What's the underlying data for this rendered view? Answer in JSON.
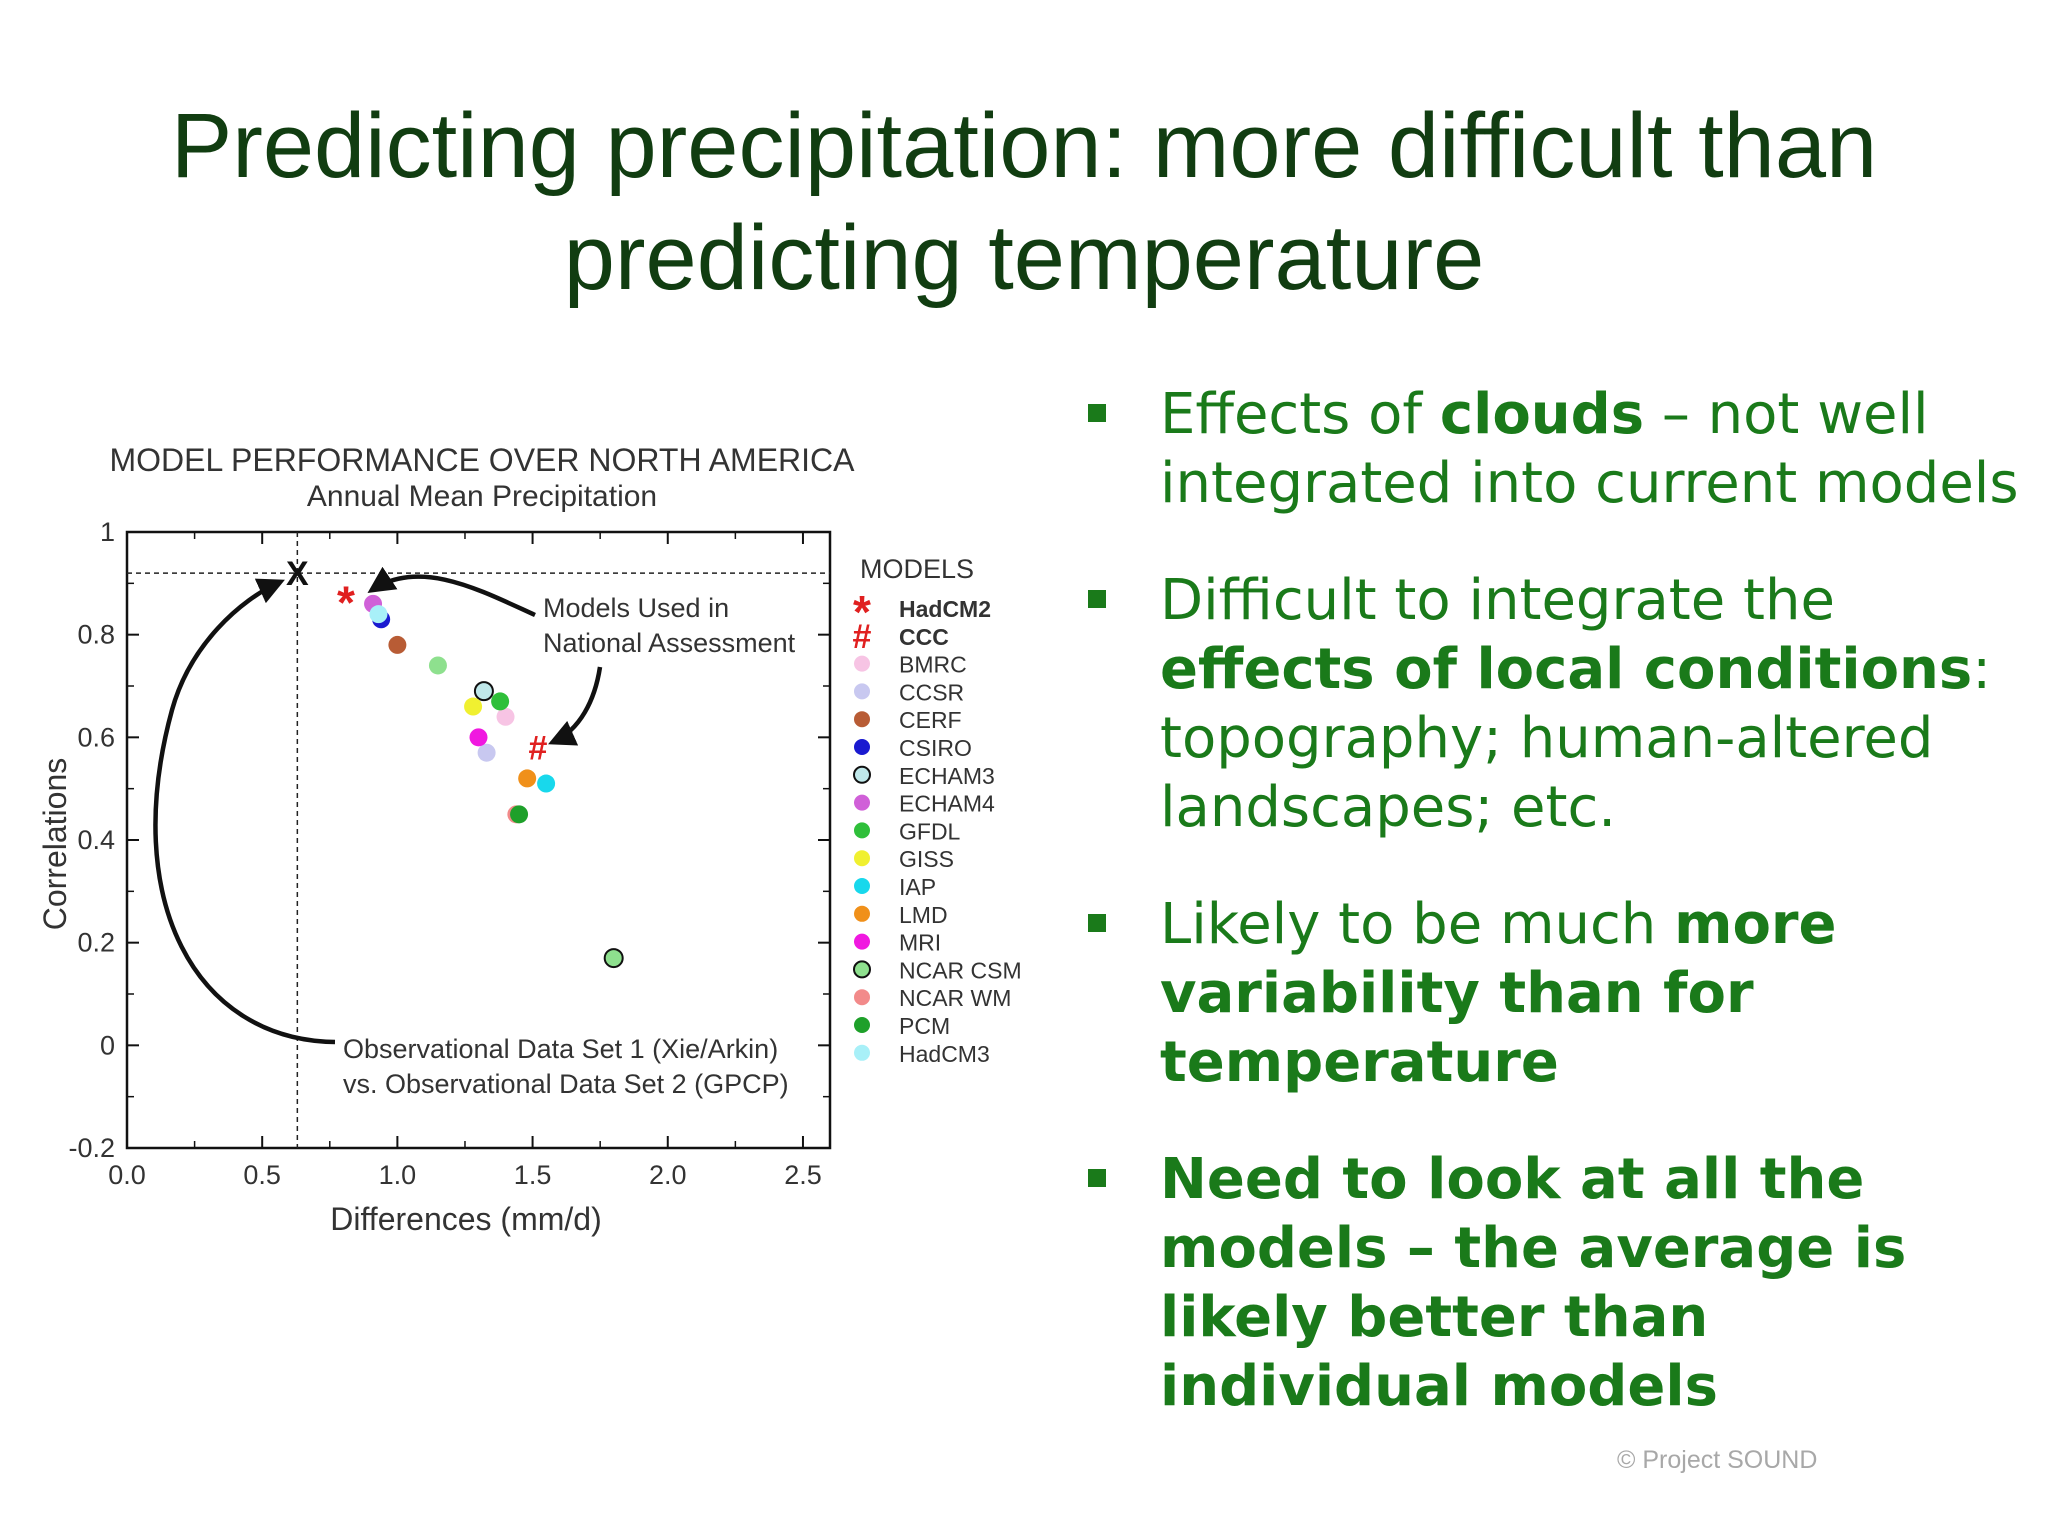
{
  "slide": {
    "title_line1": "Predicting precipitation: more difficult than",
    "title_line2": "predicting temperature",
    "footer": "© Project  SOUND",
    "text_color": "#1a7a1a",
    "title_color": "#113d11"
  },
  "bullets": [
    {
      "segments": [
        {
          "text": "Effects of ",
          "bold": false
        },
        {
          "text": "clouds",
          "bold": true
        },
        {
          "text": " – not well integrated into current models",
          "bold": false
        }
      ]
    },
    {
      "segments": [
        {
          "text": "Difficult to integrate the ",
          "bold": false
        },
        {
          "text": "effects of local conditions",
          "bold": true
        },
        {
          "text": ": topography; human-altered landscapes; etc.",
          "bold": false
        }
      ]
    },
    {
      "segments": [
        {
          "text": "Likely to be much ",
          "bold": false
        },
        {
          "text": "more variability than for temperature",
          "bold": true
        }
      ]
    },
    {
      "segments": [
        {
          "text": "Need to look at all the models – the average is likely better than individual models",
          "bold": true
        }
      ]
    }
  ],
  "chart_data": {
    "type": "scatter",
    "title": "MODEL PERFORMANCE OVER NORTH AMERICA",
    "subtitle": "Annual Mean Precipitation",
    "xlabel": "Differences (mm/d)",
    "ylabel": "Correlations",
    "xlim": [
      0.0,
      2.6
    ],
    "ylim": [
      -0.2,
      1.0
    ],
    "xticks": [
      {
        "v": 0.0,
        "label": "0.0"
      },
      {
        "v": 0.5,
        "label": "0.5"
      },
      {
        "v": 1.0,
        "label": "1.0"
      },
      {
        "v": 1.5,
        "label": "1.5"
      },
      {
        "v": 2.0,
        "label": "2.0"
      },
      {
        "v": 2.5,
        "label": "2.5"
      }
    ],
    "yticks": [
      {
        "v": -0.2,
        "label": "-0.2"
      },
      {
        "v": 0,
        "label": "0"
      },
      {
        "v": 0.2,
        "label": "0.2"
      },
      {
        "v": 0.4,
        "label": "0.4"
      },
      {
        "v": 0.6,
        "label": "0.6"
      },
      {
        "v": 0.8,
        "label": "0.8"
      },
      {
        "v": 1.0,
        "label": "1"
      }
    ],
    "legend_title": "MODELS",
    "legend_placement": "right",
    "reference_point": {
      "x": 0.63,
      "y": 0.92,
      "marker": "X"
    },
    "series": [
      {
        "name": "HadCM2",
        "marker": "*",
        "color": "#e02020",
        "x": 0.81,
        "y": 0.87
      },
      {
        "name": "CCC",
        "marker": "#",
        "color": "#e02020",
        "x": 1.52,
        "y": 0.58
      },
      {
        "name": "BMRC",
        "marker": "circle",
        "color": "#f7c4e4",
        "x": 1.4,
        "y": 0.64
      },
      {
        "name": "CCSR",
        "marker": "circle",
        "color": "#c8c8f0",
        "x": 1.33,
        "y": 0.57
      },
      {
        "name": "CERF",
        "marker": "circle",
        "color": "#b85c35",
        "x": 1.0,
        "y": 0.78
      },
      {
        "name": "CSIRO",
        "marker": "circle",
        "color": "#1a1ad0",
        "x": 0.94,
        "y": 0.83
      },
      {
        "name": "ECHAM3",
        "marker": "open-circle",
        "color": "#bfe8ea",
        "x": 1.32,
        "y": 0.69
      },
      {
        "name": "ECHAM4",
        "marker": "circle",
        "color": "#d060d8",
        "x": 0.91,
        "y": 0.86
      },
      {
        "name": "GFDL",
        "marker": "circle",
        "color": "#2fbf3a",
        "x": 1.38,
        "y": 0.67
      },
      {
        "name": "GISS",
        "marker": "circle",
        "color": "#f0f030",
        "x": 1.28,
        "y": 0.66
      },
      {
        "name": "IAP",
        "marker": "circle",
        "color": "#18d8ec",
        "x": 1.55,
        "y": 0.51
      },
      {
        "name": "LMD",
        "marker": "circle",
        "color": "#f0901a",
        "x": 1.48,
        "y": 0.52
      },
      {
        "name": "MRI",
        "marker": "circle",
        "color": "#f018e0",
        "x": 1.3,
        "y": 0.6
      },
      {
        "name": "NCAR CSM",
        "marker": "open-circle",
        "color": "#8ee08e",
        "x": 1.8,
        "y": 0.17
      },
      {
        "name": "NCAR WM",
        "marker": "circle",
        "color": "#f28a8a",
        "x": 1.44,
        "y": 0.45
      },
      {
        "name": "PCM",
        "marker": "circle",
        "color": "#1ea02a",
        "x": 1.45,
        "y": 0.45
      },
      {
        "name": "HadCM3",
        "marker": "circle",
        "color": "#a8f0f8",
        "x": 0.93,
        "y": 0.84
      }
    ],
    "extra_points": [
      {
        "x": 1.15,
        "y": 0.74,
        "color": "#8ee08e"
      }
    ],
    "annotations": [
      {
        "text_lines": [
          "Models Used in",
          "National Assessment"
        ]
      },
      {
        "text_lines": [
          "Observational Data Set 1 (Xie/Arkin)",
          "vs. Observational Data Set 2 (GPCP)"
        ]
      }
    ]
  }
}
